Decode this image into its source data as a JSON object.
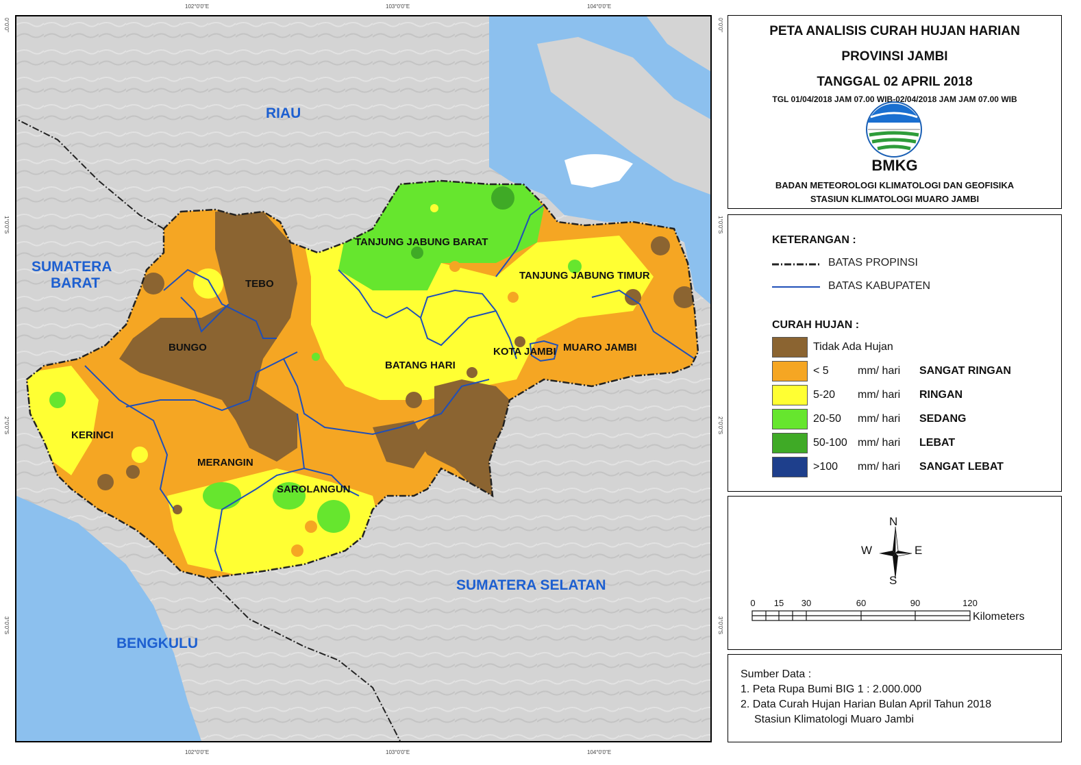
{
  "title": {
    "line1": "PETA ANALISIS CURAH HUJAN HARIAN",
    "line2": "PROVINSI JAMBI",
    "line3": "TANGGAL 02 APRIL 2018",
    "period": "TGL 01/04/2018 JAM 07.00 WIB-02/04/2018 JAM JAM 07.00 WIB",
    "logo_text": "BMKG",
    "org_line1": "BADAN METEOROLOGI KLIMATOLOGI DAN GEOFISIKA",
    "org_line2": "STASIUN KLIMATOLOGI MUARO JAMBI"
  },
  "coordinates": {
    "top": [
      "102°0'0\"E",
      "103°0'0\"E",
      "104°0'0\"E"
    ],
    "bottom": [
      "102°0'0\"E",
      "103°0'0\"E",
      "104°0'0\"E"
    ],
    "left": [
      "0°0'0\"",
      "1°0'0\"S",
      "2°0'0\"S",
      "3°0'0\"S"
    ],
    "right": [
      "0°0'0\"",
      "1°0'0\"S",
      "2°0'0\"S",
      "3°0'0\"S"
    ]
  },
  "map": {
    "provinces": {
      "riau": "RIAU",
      "sumbar_1": "SUMATERA",
      "sumbar_2": "BARAT",
      "sumsel": "SUMATERA SELATAN",
      "bengkulu": "BENGKULU"
    },
    "kabupaten": {
      "tanjab_barat": "TANJUNG JABUNG BARAT",
      "tanjab_timur": "TANJUNG JABUNG TIMUR",
      "tebo": "TEBO",
      "bungo": "BUNGO",
      "batang_hari": "BATANG HARI",
      "kota_jambi": "KOTA JAMBI",
      "muaro_jambi": "MUARO JAMBI",
      "kerinci": "KERINCI",
      "merangin": "MERANGIN",
      "sarolangun": "SAROLANGUN"
    }
  },
  "legend": {
    "heading": "KETERANGAN :",
    "lines": [
      {
        "label": "BATAS PROPINSI"
      },
      {
        "label": "BATAS KABUPATEN"
      }
    ],
    "rain_heading": "CURAH HUJAN :",
    "classes": [
      {
        "range": "Tidak Ada Hujan",
        "unit": "",
        "category": "",
        "color": "#8b6431"
      },
      {
        "range": "< 5",
        "unit": "mm/ hari",
        "category": "SANGAT RINGAN",
        "color": "#f5a623"
      },
      {
        "range": "5-20",
        "unit": "mm/ hari",
        "category": "RINGAN",
        "color": "#ffff33"
      },
      {
        "range": "20-50",
        "unit": "mm/ hari",
        "category": "SEDANG",
        "color": "#66e62e"
      },
      {
        "range": "50-100",
        "unit": "mm/ hari",
        "category": "LEBAT",
        "color": "#3faa26"
      },
      {
        "range": ">100",
        "unit": "mm/ hari",
        "category": "SANGAT LEBAT",
        "color": "#1e3f8c"
      }
    ]
  },
  "compass": {
    "n": "N",
    "s": "S",
    "e": "E",
    "w": "W"
  },
  "scale": {
    "ticks": [
      "0",
      "15",
      "30",
      "60",
      "90",
      "120"
    ],
    "unit": "Kilometers"
  },
  "source": {
    "heading": "Sumber Data :",
    "items": [
      "1. Peta Rupa Bumi BIG 1 : 2.000.000",
      "2. Data Curah Hujan Harian Bulan April Tahun 2018",
      "Stasiun Klimatologi Muaro Jambi"
    ]
  }
}
